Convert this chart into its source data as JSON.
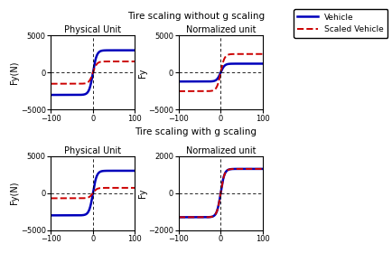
{
  "title_top": "Tire scaling without g scaling",
  "title_bottom": "Tire scaling with g scaling",
  "subplots": [
    {
      "title": "Physical Unit",
      "ylabel": "Fy(N)",
      "xlim": [
        -100,
        100
      ],
      "ylim": [
        -5000,
        5000
      ],
      "yticks": [
        -5000,
        0,
        5000
      ],
      "xticks": [
        -100,
        0,
        100
      ]
    },
    {
      "title": "Normalized unit",
      "ylabel": "Fy",
      "xlim": [
        -100,
        100
      ],
      "ylim": [
        -5000,
        5000
      ],
      "yticks": [
        -5000,
        0,
        5000
      ],
      "xticks": [
        -100,
        0,
        100
      ]
    },
    {
      "title": "Physical Unit",
      "ylabel": "Fy(N)",
      "xlim": [
        -100,
        100
      ],
      "ylim": [
        -5000,
        5000
      ],
      "yticks": [
        -5000,
        0,
        5000
      ],
      "xticks": [
        -100,
        0,
        100
      ]
    },
    {
      "title": "Normalized unit",
      "ylabel": "Fy",
      "xlim": [
        -100,
        100
      ],
      "ylim": [
        -2000,
        2000
      ],
      "yticks": [
        -2000,
        0,
        2000
      ],
      "xticks": [
        -100,
        0,
        100
      ]
    }
  ],
  "curves": {
    "v1_sat": 3000,
    "v1_slope": 0.22,
    "s1_sat": 1500,
    "s1_slope": 0.22,
    "v2_sat": 1200,
    "v2_slope": 0.22,
    "s2_sat": 2500,
    "s2_slope": 0.22,
    "v3_sat": 3000,
    "v3_slope": 0.22,
    "s3_sat": 700,
    "s3_slope": 0.22,
    "v4_sat": 1300,
    "v4_slope": 0.22,
    "s4_sat": 1300,
    "s4_slope": 0.22
  },
  "vehicle_color": "#0000bb",
  "scaled_color": "#cc0000",
  "vehicle_lw": 1.8,
  "scaled_lw": 1.4,
  "legend_labels": [
    "Vehicle",
    "Scaled Vehicle"
  ]
}
